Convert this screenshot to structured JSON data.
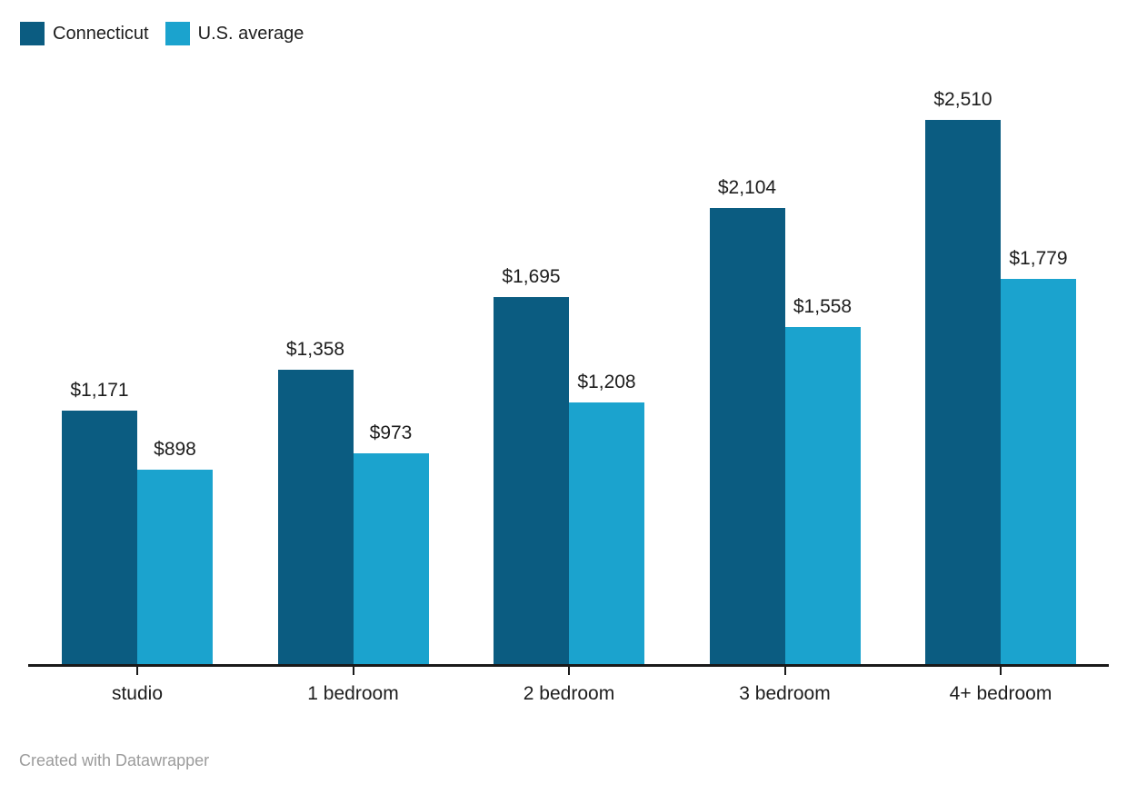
{
  "footer": {
    "credit": "Created with Datawrapper"
  },
  "colors": {
    "connecticut": "#0b5c81",
    "us_average": "#1ba3ce",
    "axis": "#1a1a1a",
    "text": "#1d1d1d",
    "credit_text": "#9c9c9c",
    "background": "#ffffff"
  },
  "chart_data": {
    "type": "bar",
    "grouped": true,
    "title": "",
    "xlabel": "",
    "ylabel": "",
    "categories": [
      "studio",
      "1 bedroom",
      "2 bedroom",
      "3 bedroom",
      "4+ bedroom"
    ],
    "series": [
      {
        "name": "Connecticut",
        "color": "#0b5c81",
        "values": [
          1171,
          1358,
          1695,
          2104,
          2510
        ],
        "labels": [
          "$1,171",
          "$1,358",
          "$1,695",
          "$2,104",
          "$2,510"
        ]
      },
      {
        "name": "U.S. average",
        "color": "#1ba3ce",
        "values": [
          898,
          973,
          1208,
          1558,
          1779
        ],
        "labels": [
          "$898",
          "$973",
          "$1,208",
          "$1,558",
          "$1,779"
        ]
      }
    ],
    "value_prefix": "$",
    "ylim": [
      0,
      2510
    ],
    "grid": false,
    "y_axis_shown": false,
    "legend_position": "top-left",
    "value_labels_shown": true
  }
}
